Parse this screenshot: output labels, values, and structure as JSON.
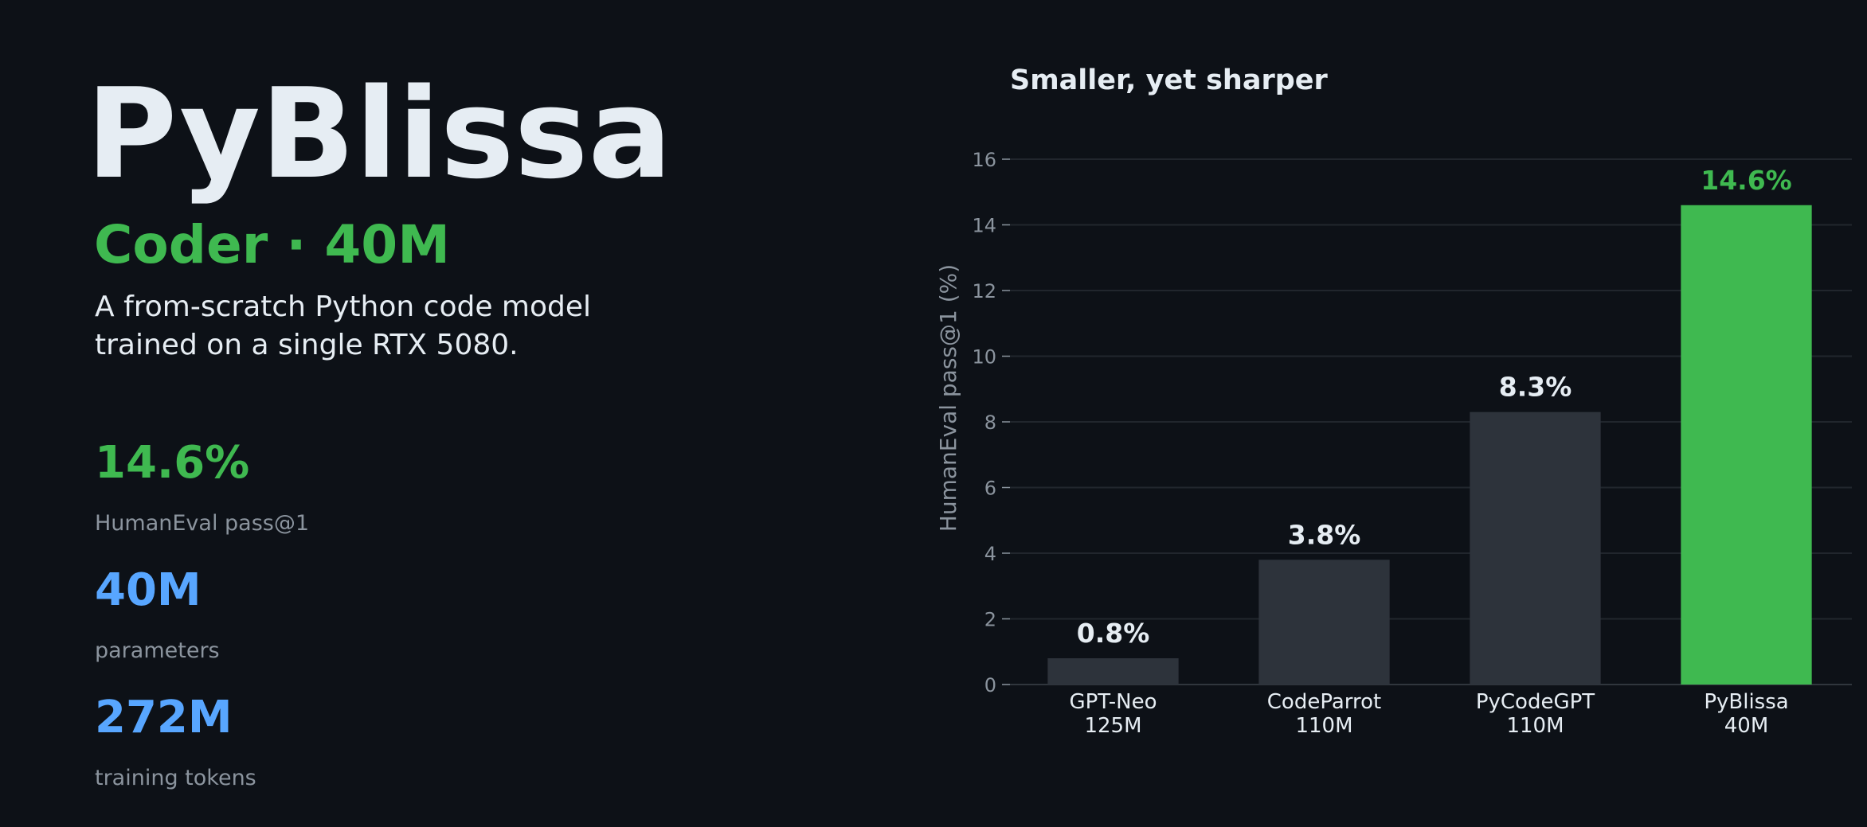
{
  "hero": {
    "title": "PyBlissa",
    "subtitle": "Coder · 40M",
    "description": [
      "A from-scratch Python code model",
      "trained on a single RTX 5080."
    ],
    "stats": [
      {
        "value": "14.6%",
        "label": "HumanEval pass@1",
        "color": "#3fb950"
      },
      {
        "value": "40M",
        "label": "parameters",
        "color": "#58a6ff"
      },
      {
        "value": "272M",
        "label": "training tokens",
        "color": "#58a6ff"
      }
    ]
  },
  "chart_data": {
    "type": "bar",
    "title": "Smaller, yet sharper",
    "y_label": "HumanEval pass@1 (%)",
    "categories": [
      [
        "GPT-Neo",
        "125M"
      ],
      [
        "CodeParrot",
        "110M"
      ],
      [
        "PyCodeGPT",
        "110M"
      ],
      [
        "PyBlissa",
        "40M"
      ]
    ],
    "values": [
      0.8,
      3.8,
      8.3,
      14.6
    ],
    "value_labels": [
      "0.8%",
      "3.8%",
      "8.3%",
      "14.6%"
    ],
    "colors": [
      "#2d333b",
      "#2d333b",
      "#2d333b",
      "#3fb950"
    ],
    "value_label_colors": [
      "#e6edf3",
      "#e6edf3",
      "#e6edf3",
      "#3fb950"
    ],
    "ylim": [
      0,
      16
    ],
    "yticks": [
      0,
      2,
      4,
      6,
      8,
      10,
      12,
      14,
      16
    ],
    "grid": true
  }
}
